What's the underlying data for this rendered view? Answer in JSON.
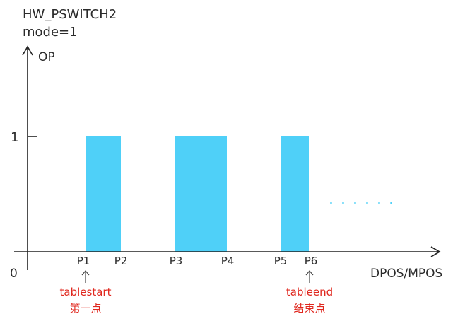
{
  "title": {
    "line1": "HW_PSWITCH2",
    "line2": "mode=1"
  },
  "axes": {
    "y_label": "OP",
    "x_label": "DPOS/MPOS",
    "origin_label": "0",
    "y_tick_label": "1"
  },
  "points": [
    "P1",
    "P2",
    "P3",
    "P4",
    "P5",
    "P6"
  ],
  "pulses": [
    {
      "from": "P1",
      "to": "P2",
      "level": 1
    },
    {
      "from": "P3",
      "to": "P4",
      "level": 1
    },
    {
      "from": "P5",
      "to": "P6",
      "level": 1
    }
  ],
  "continuation": "......",
  "annotations": {
    "start": {
      "point": "P1",
      "line1": "tablestart",
      "line2": "第一点"
    },
    "end": {
      "point": "P6",
      "line1": "tableend",
      "line2": "结束点"
    }
  },
  "colors": {
    "pulse": "#4fd0f8",
    "axis": "#222222",
    "text": "#2b2b2b",
    "annotation": "#e0281f"
  }
}
